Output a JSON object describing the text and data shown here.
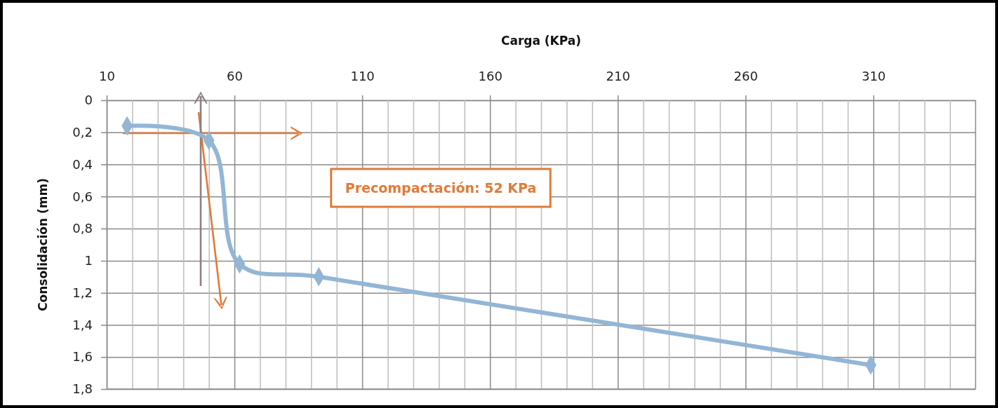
{
  "chart_data": {
    "type": "line",
    "xlabel": "Carga (KPa)",
    "ylabel": "Consolidación (mm)",
    "xlim": [
      10,
      350
    ],
    "ylim": [
      1.8,
      0
    ],
    "xticks": [
      10,
      {
        "value": 20,
        "label": null
      },
      {
        "value": 30,
        "label": null
      },
      {
        "value": 40,
        "label": null
      },
      {
        "value": 50,
        "label": null
      },
      60,
      {
        "value": 70,
        "label": null
      },
      {
        "value": 80,
        "label": null
      },
      {
        "value": 90,
        "label": null
      },
      {
        "value": 100,
        "label": null
      },
      110,
      {
        "value": 120,
        "label": null
      },
      {
        "value": 130,
        "label": null
      },
      {
        "value": 140,
        "label": null
      },
      {
        "value": 150,
        "label": null
      },
      160,
      {
        "value": 170,
        "label": null
      },
      {
        "value": 180,
        "label": null
      },
      {
        "value": 190,
        "label": null
      },
      {
        "value": 200,
        "label": null
      },
      210,
      {
        "value": 220,
        "label": null
      },
      {
        "value": 230,
        "label": null
      },
      {
        "value": 240,
        "label": null
      },
      {
        "value": 250,
        "label": null
      },
      260,
      {
        "value": 270,
        "label": null
      },
      {
        "value": 280,
        "label": null
      },
      {
        "value": 290,
        "label": null
      },
      {
        "value": 300,
        "label": null
      },
      310,
      {
        "value": 320,
        "label": null
      },
      {
        "value": 330,
        "label": null
      },
      {
        "value": 340,
        "label": null
      }
    ],
    "yticks": [
      0,
      {
        "value": 0.2,
        "label": "0,2"
      },
      {
        "value": 0.4,
        "label": "0,4"
      },
      {
        "value": 0.6,
        "label": "0,6"
      },
      {
        "value": 0.8,
        "label": "0,8"
      },
      1,
      {
        "value": 1.2,
        "label": "1,2"
      },
      {
        "value": 1.4,
        "label": "1,4"
      },
      {
        "value": 1.6,
        "label": "1,6"
      },
      {
        "value": 1.8,
        "label": "1,8"
      }
    ],
    "grid": true,
    "line_style": "solid",
    "marker": "diamond",
    "series": [
      {
        "color": "#93b6d5",
        "x": [
          18,
          50,
          62,
          93,
          309
        ],
        "values": [
          0.16,
          0.25,
          1.02,
          1.1,
          1.65
        ]
      }
    ],
    "annotations": [
      "Precompactación: 52 KPa"
    ]
  }
}
